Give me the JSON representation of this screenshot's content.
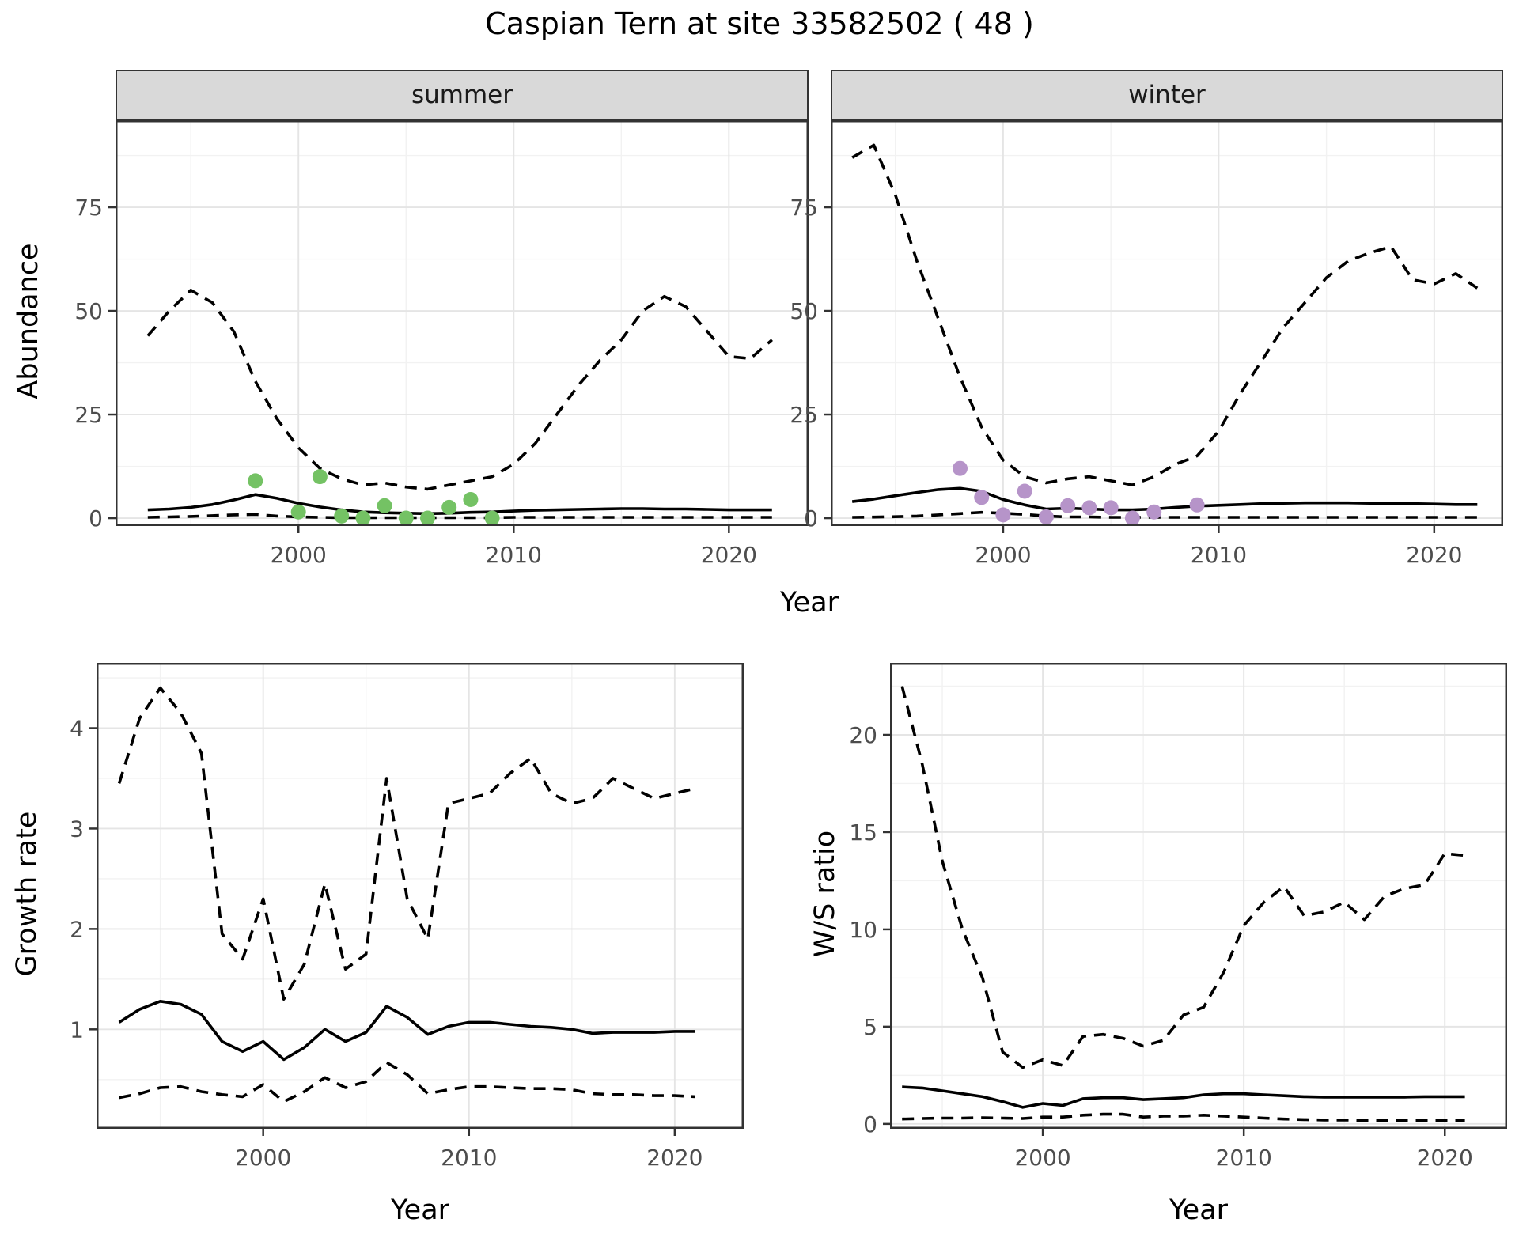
{
  "title": "Caspian Tern at site 33582502 ( 48 )",
  "colors": {
    "summer_points": "#74c264",
    "winter_points": "#b694c9",
    "line": "#000000",
    "strip_background": "#d9d9d9"
  },
  "top_section": {
    "ylabel": "Abundance",
    "xlabel": "Year",
    "facets": [
      "summer",
      "winter"
    ]
  },
  "bottom_left_section": {
    "ylabel": "Growth rate",
    "xlabel": "Year"
  },
  "bottom_right_section": {
    "ylabel": "W/S ratio",
    "xlabel": "Year"
  },
  "chart_data": [
    {
      "id": "abundance-summer",
      "type": "line",
      "facet_label": "summer",
      "ylabel": "Abundance",
      "xlabel": "Year",
      "xlim": [
        1991.5,
        2023.7
      ],
      "ylim": [
        -1.9,
        96.0
      ],
      "xticks": [
        2000,
        2010,
        2020
      ],
      "yticks": [
        0,
        25,
        50,
        75
      ],
      "grid": "major+minor",
      "legend": "none",
      "x": [
        1993,
        1994,
        1995,
        1996,
        1997,
        1998,
        1999,
        2000,
        2001,
        2002,
        2003,
        2004,
        2005,
        2006,
        2007,
        2008,
        2009,
        2010,
        2011,
        2012,
        2013,
        2014,
        2015,
        2016,
        2017,
        2018,
        2019,
        2020,
        2021,
        2022
      ],
      "series": [
        {
          "name": "upper-95ci",
          "style": "dashed",
          "color": "#000000",
          "values": [
            44,
            50,
            55,
            52,
            45,
            33,
            24,
            17,
            12,
            9.5,
            8,
            8.5,
            7.5,
            7,
            8,
            9,
            10,
            13,
            18,
            25,
            32,
            38,
            43,
            50,
            53.5,
            51,
            45,
            39,
            38.5,
            43
          ]
        },
        {
          "name": "median",
          "style": "solid",
          "color": "#000000",
          "values": [
            2,
            2.2,
            2.6,
            3.3,
            4.4,
            5.7,
            4.8,
            3.6,
            2.7,
            2,
            1.5,
            1.3,
            1.2,
            1.1,
            1.2,
            1.4,
            1.5,
            1.7,
            1.9,
            2,
            2.1,
            2.2,
            2.3,
            2.3,
            2.2,
            2.2,
            2.1,
            2,
            2,
            2
          ]
        },
        {
          "name": "lower-95ci",
          "style": "dashed",
          "color": "#000000",
          "values": [
            0.2,
            0.3,
            0.4,
            0.6,
            0.8,
            0.9,
            0.5,
            0.3,
            0.2,
            0.1,
            0.1,
            0.1,
            0.1,
            0.1,
            0.1,
            0.1,
            0.1,
            0.2,
            0.2,
            0.2,
            0.2,
            0.2,
            0.2,
            0.2,
            0.2,
            0.2,
            0.2,
            0.2,
            0.2,
            0.2
          ]
        }
      ],
      "points": {
        "name": "observed-summer",
        "color": "#74c264",
        "x": [
          1998,
          2000,
          2001,
          2002,
          2003,
          2004,
          2005,
          2006,
          2007,
          2008,
          2009
        ],
        "y": [
          9,
          1.5,
          10,
          0.5,
          0,
          3,
          0,
          0,
          2.6,
          4.5,
          0
        ]
      }
    },
    {
      "id": "abundance-winter",
      "type": "line",
      "facet_label": "winter",
      "ylabel": "Abundance",
      "xlabel": "Year",
      "xlim": [
        1992.0,
        2023.2
      ],
      "ylim": [
        -1.9,
        96.0
      ],
      "xticks": [
        2000,
        2010,
        2020
      ],
      "yticks": [
        0,
        25,
        50,
        75
      ],
      "grid": "major+minor",
      "legend": "none",
      "x": [
        1993,
        1994,
        1995,
        1996,
        1997,
        1998,
        1999,
        2000,
        2001,
        2002,
        2003,
        2004,
        2005,
        2006,
        2007,
        2008,
        2009,
        2010,
        2011,
        2012,
        2013,
        2014,
        2015,
        2016,
        2017,
        2018,
        2019,
        2020,
        2021,
        2022
      ],
      "series": [
        {
          "name": "upper-95ci",
          "style": "dashed",
          "color": "#000000",
          "values": [
            87,
            90,
            78,
            62,
            48,
            34,
            22,
            14,
            10,
            8.5,
            9.5,
            10,
            9,
            8,
            10,
            13,
            15,
            21,
            30,
            38,
            46,
            52,
            58,
            62,
            64,
            65.5,
            57.5,
            56.5,
            59,
            55.5
          ]
        },
        {
          "name": "median",
          "style": "solid",
          "color": "#000000",
          "values": [
            4,
            4.6,
            5.4,
            6.2,
            6.9,
            7.2,
            6.5,
            4.5,
            3.2,
            2.2,
            2.4,
            2.2,
            2,
            2,
            2.2,
            2.6,
            2.9,
            3.1,
            3.3,
            3.5,
            3.6,
            3.7,
            3.7,
            3.7,
            3.6,
            3.6,
            3.5,
            3.4,
            3.3,
            3.3
          ]
        },
        {
          "name": "lower-95ci",
          "style": "dashed",
          "color": "#000000",
          "values": [
            0.2,
            0.25,
            0.35,
            0.5,
            0.8,
            1.1,
            1.4,
            1.2,
            0.9,
            0.5,
            0.3,
            0.3,
            0.2,
            0.2,
            0.2,
            0.2,
            0.2,
            0.2,
            0.2,
            0.2,
            0.2,
            0.2,
            0.2,
            0.2,
            0.2,
            0.2,
            0.2,
            0.2,
            0.2,
            0.2
          ]
        }
      ],
      "points": {
        "name": "observed-winter",
        "color": "#b694c9",
        "x": [
          1998,
          1999,
          2000,
          2001,
          2002,
          2003,
          2004,
          2005,
          2006,
          2007,
          2009
        ],
        "y": [
          12,
          5,
          0.8,
          6.5,
          0.3,
          3,
          2.5,
          2.5,
          0,
          1.5,
          3.2
        ]
      }
    },
    {
      "id": "growth-rate",
      "type": "line",
      "facet_label": "",
      "ylabel": "Growth rate",
      "xlabel": "Year",
      "xlim": [
        1991.9,
        2023.35
      ],
      "ylim": [
        0.01,
        4.65
      ],
      "xticks": [
        2000,
        2010,
        2020
      ],
      "yticks": [
        1,
        2,
        3,
        4
      ],
      "grid": "major+minor",
      "legend": "none",
      "x": [
        1993,
        1994,
        1995,
        1996,
        1997,
        1998,
        1999,
        2000,
        2001,
        2002,
        2003,
        2004,
        2005,
        2006,
        2007,
        2008,
        2009,
        2010,
        2011,
        2012,
        2013,
        2014,
        2015,
        2016,
        2017,
        2018,
        2019,
        2020,
        2021
      ],
      "series": [
        {
          "name": "upper-95ci",
          "style": "dashed",
          "color": "#000000",
          "values": [
            3.45,
            4.1,
            4.4,
            4.15,
            3.75,
            1.95,
            1.7,
            2.3,
            1.3,
            1.65,
            2.45,
            1.6,
            1.75,
            3.5,
            2.3,
            1.9,
            3.25,
            3.3,
            3.35,
            3.55,
            3.7,
            3.35,
            3.25,
            3.3,
            3.5,
            3.4,
            3.3,
            3.35,
            3.4
          ]
        },
        {
          "name": "median",
          "style": "solid",
          "color": "#000000",
          "values": [
            1.07,
            1.2,
            1.28,
            1.25,
            1.15,
            0.88,
            0.78,
            0.88,
            0.7,
            0.82,
            1,
            0.88,
            0.97,
            1.23,
            1.12,
            0.95,
            1.03,
            1.07,
            1.07,
            1.05,
            1.03,
            1.02,
            1,
            0.96,
            0.97,
            0.97,
            0.97,
            0.98,
            0.98
          ]
        },
        {
          "name": "lower-95ci",
          "style": "dashed",
          "color": "#000000",
          "values": [
            0.32,
            0.36,
            0.42,
            0.43,
            0.38,
            0.35,
            0.33,
            0.45,
            0.28,
            0.38,
            0.52,
            0.42,
            0.48,
            0.67,
            0.55,
            0.36,
            0.4,
            0.43,
            0.43,
            0.42,
            0.41,
            0.41,
            0.4,
            0.36,
            0.35,
            0.35,
            0.34,
            0.34,
            0.33
          ]
        }
      ]
    },
    {
      "id": "ws-ratio",
      "type": "line",
      "facet_label": "",
      "ylabel": "W/S ratio",
      "xlabel": "Year",
      "xlim": [
        1992.4,
        2023.1
      ],
      "ylim": [
        -0.25,
        23.7
      ],
      "xticks": [
        2000,
        2010,
        2020
      ],
      "yticks": [
        0,
        5,
        10,
        15,
        20
      ],
      "grid": "major+minor",
      "legend": "none",
      "x": [
        1993,
        1994,
        1995,
        1996,
        1997,
        1998,
        1999,
        2000,
        2001,
        2002,
        2003,
        2004,
        2005,
        2006,
        2007,
        2008,
        2009,
        2010,
        2011,
        2012,
        2013,
        2014,
        2015,
        2016,
        2017,
        2018,
        2019,
        2020,
        2021
      ],
      "series": [
        {
          "name": "upper-95ci",
          "style": "dashed",
          "color": "#000000",
          "values": [
            22.5,
            18.5,
            13.5,
            10,
            7.5,
            3.7,
            2.9,
            3.3,
            3,
            4.5,
            4.6,
            4.4,
            4,
            4.3,
            5.6,
            6,
            7.8,
            10.2,
            11.4,
            12.2,
            10.7,
            10.9,
            11.4,
            10.5,
            11.7,
            12.1,
            12.3,
            13.9,
            13.8
          ]
        },
        {
          "name": "median",
          "style": "solid",
          "color": "#000000",
          "values": [
            1.9,
            1.85,
            1.7,
            1.55,
            1.4,
            1.15,
            0.85,
            1.05,
            0.95,
            1.3,
            1.35,
            1.35,
            1.25,
            1.3,
            1.35,
            1.5,
            1.55,
            1.55,
            1.5,
            1.45,
            1.4,
            1.38,
            1.38,
            1.38,
            1.38,
            1.38,
            1.4,
            1.4,
            1.4
          ]
        },
        {
          "name": "lower-95ci",
          "style": "dashed",
          "color": "#000000",
          "values": [
            0.25,
            0.28,
            0.3,
            0.3,
            0.32,
            0.3,
            0.28,
            0.35,
            0.35,
            0.45,
            0.5,
            0.5,
            0.35,
            0.4,
            0.4,
            0.45,
            0.4,
            0.35,
            0.3,
            0.25,
            0.22,
            0.2,
            0.2,
            0.18,
            0.18,
            0.18,
            0.18,
            0.18,
            0.18
          ]
        }
      ]
    }
  ]
}
